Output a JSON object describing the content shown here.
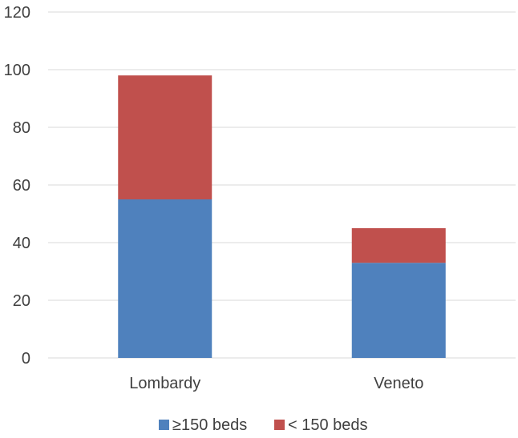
{
  "chart_data": {
    "type": "bar",
    "stacked": true,
    "categories": [
      "Lombardy",
      "Veneto"
    ],
    "series": [
      {
        "name": "≥150 beds",
        "values": [
          55,
          33
        ],
        "color": "#4f81bd"
      },
      {
        "name": "< 150 beds",
        "values": [
          43,
          12
        ],
        "color": "#c0504d"
      }
    ],
    "ylim": [
      0,
      120
    ],
    "yticks": [
      0,
      20,
      40,
      60,
      80,
      100,
      120
    ],
    "grid": true,
    "legend_position": "bottom"
  }
}
